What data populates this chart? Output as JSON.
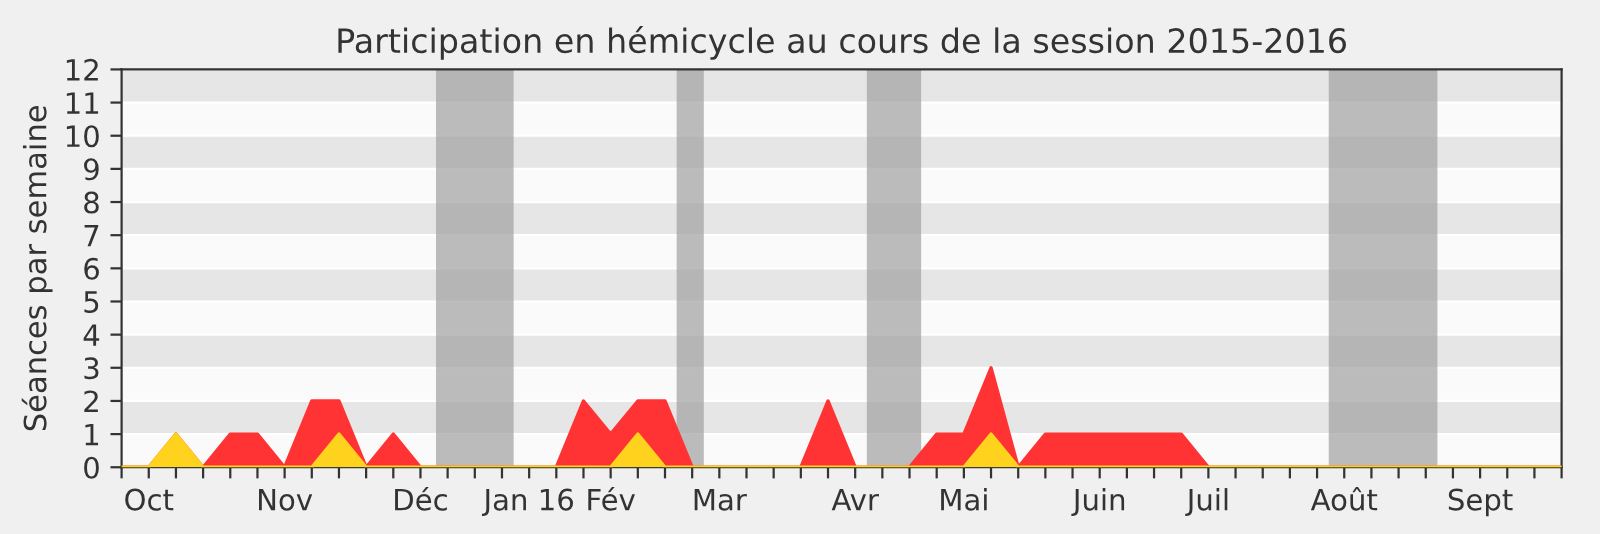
{
  "chart_data": {
    "type": "area",
    "title": "Participation en hémicycle au cours de la session 2015-2016",
    "ylabel": "Séances par semaine",
    "x": [
      "2015-10-01",
      "2015-10-08",
      "2015-10-15",
      "2015-10-22",
      "2015-10-29",
      "2015-11-05",
      "2015-11-12",
      "2015-11-19",
      "2015-11-26",
      "2015-12-03",
      "2015-12-10",
      "2015-12-17",
      "2015-12-24",
      "2015-12-31",
      "2016-01-07",
      "2016-01-14",
      "2016-01-21",
      "2016-01-28",
      "2016-02-04",
      "2016-02-11",
      "2016-02-18",
      "2016-02-25",
      "2016-03-03",
      "2016-03-10",
      "2016-03-17",
      "2016-03-24",
      "2016-03-31",
      "2016-04-07",
      "2016-04-14",
      "2016-04-21",
      "2016-04-28",
      "2016-05-05",
      "2016-05-12",
      "2016-05-19",
      "2016-05-26",
      "2016-06-02",
      "2016-06-09",
      "2016-06-16",
      "2016-06-23",
      "2016-06-30",
      "2016-07-07",
      "2016-07-14",
      "2016-07-21",
      "2016-07-28",
      "2016-08-04",
      "2016-08-11",
      "2016-08-18",
      "2016-08-25",
      "2016-09-01",
      "2016-09-08",
      "2016-09-15",
      "2016-09-22",
      "2016-09-29",
      "2016-10-06"
    ],
    "series": [
      {
        "color": "#ff3333",
        "values": [
          0,
          0,
          1,
          0,
          1,
          1,
          0,
          2,
          2,
          0,
          1,
          0,
          0,
          0,
          0,
          0,
          0,
          2,
          1,
          2,
          2,
          0,
          0,
          0,
          0,
          0,
          2,
          0,
          0,
          0,
          1,
          1,
          3,
          0,
          1,
          1,
          1,
          1,
          1,
          1,
          0,
          0,
          0,
          0,
          0,
          0,
          0,
          0,
          0,
          0,
          0,
          0,
          0,
          0
        ]
      },
      {
        "color": "#ffd21e",
        "values": [
          0,
          0,
          1,
          0,
          0,
          0,
          0,
          0,
          1,
          0,
          0,
          0,
          0,
          0,
          0,
          0,
          0,
          0,
          0,
          1,
          0,
          0,
          0,
          0,
          0,
          0,
          0,
          0,
          0,
          0,
          0,
          0,
          1,
          0,
          0,
          0,
          0,
          0,
          0,
          0,
          0,
          0,
          0,
          0,
          0,
          0,
          0,
          0,
          0,
          0,
          0,
          0,
          0,
          0
        ]
      }
    ],
    "bands": [
      {
        "axis": "x",
        "from": "2015-12-21",
        "to": "2016-01-10",
        "color": "#a0a0a0"
      },
      {
        "axis": "x",
        "from": "2016-02-21",
        "to": "2016-02-28",
        "color": "#a0a0a0"
      },
      {
        "axis": "x",
        "from": "2016-04-10",
        "to": "2016-04-24",
        "color": "#a0a0a0"
      },
      {
        "axis": "x",
        "from": "2016-08-07",
        "to": "2016-09-04",
        "color": "#a0a0a0"
      }
    ],
    "xlim": [
      "2015-10-01",
      "2016-10-06"
    ],
    "xticks": [
      {
        "value": "2015-10-01",
        "label": null
      },
      {
        "value": "2015-10-08",
        "label": "Oct"
      },
      {
        "value": "2015-10-15",
        "label": null
      },
      {
        "value": "2015-10-22",
        "label": null
      },
      {
        "value": "2015-10-29",
        "label": null
      },
      {
        "value": "2015-11-05",
        "label": null
      },
      {
        "value": "2015-11-12",
        "label": "Nov"
      },
      {
        "value": "2015-11-19",
        "label": null
      },
      {
        "value": "2015-11-26",
        "label": null
      },
      {
        "value": "2015-12-03",
        "label": null
      },
      {
        "value": "2015-12-10",
        "label": null
      },
      {
        "value": "2015-12-17",
        "label": "Déc"
      },
      {
        "value": "2015-12-24",
        "label": null
      },
      {
        "value": "2015-12-31",
        "label": null
      },
      {
        "value": "2016-01-07",
        "label": null
      },
      {
        "value": "2016-01-14",
        "label": "Jan 16"
      },
      {
        "value": "2016-01-21",
        "label": null
      },
      {
        "value": "2016-01-28",
        "label": null
      },
      {
        "value": "2016-02-04",
        "label": "Fév"
      },
      {
        "value": "2016-02-11",
        "label": null
      },
      {
        "value": "2016-02-18",
        "label": null
      },
      {
        "value": "2016-02-25",
        "label": null
      },
      {
        "value": "2016-03-03",
        "label": "Mar"
      },
      {
        "value": "2016-03-10",
        "label": null
      },
      {
        "value": "2016-03-17",
        "label": null
      },
      {
        "value": "2016-03-24",
        "label": null
      },
      {
        "value": "2016-03-31",
        "label": null
      },
      {
        "value": "2016-04-07",
        "label": "Avr"
      },
      {
        "value": "2016-04-14",
        "label": null
      },
      {
        "value": "2016-04-21",
        "label": null
      },
      {
        "value": "2016-04-28",
        "label": null
      },
      {
        "value": "2016-05-05",
        "label": "Mai"
      },
      {
        "value": "2016-05-12",
        "label": null
      },
      {
        "value": "2016-05-19",
        "label": null
      },
      {
        "value": "2016-05-26",
        "label": null
      },
      {
        "value": "2016-06-02",
        "label": null
      },
      {
        "value": "2016-06-09",
        "label": "Juin"
      },
      {
        "value": "2016-06-16",
        "label": null
      },
      {
        "value": "2016-06-23",
        "label": null
      },
      {
        "value": "2016-06-30",
        "label": null
      },
      {
        "value": "2016-07-07",
        "label": "Juil"
      },
      {
        "value": "2016-07-14",
        "label": null
      },
      {
        "value": "2016-07-21",
        "label": null
      },
      {
        "value": "2016-07-28",
        "label": null
      },
      {
        "value": "2016-08-04",
        "label": null
      },
      {
        "value": "2016-08-11",
        "label": "Août"
      },
      {
        "value": "2016-08-18",
        "label": null
      },
      {
        "value": "2016-08-25",
        "label": null
      },
      {
        "value": "2016-09-01",
        "label": null
      },
      {
        "value": "2016-09-08",
        "label": null
      },
      {
        "value": "2016-09-15",
        "label": "Sept"
      },
      {
        "value": "2016-09-22",
        "label": null
      },
      {
        "value": "2016-09-29",
        "label": null
      },
      {
        "value": "2016-10-06",
        "label": null
      }
    ],
    "ylim": [
      0,
      12
    ],
    "yticks": [
      0,
      1,
      2,
      3,
      4,
      5,
      6,
      7,
      8,
      9,
      10,
      11,
      12
    ],
    "grid": "y",
    "legend": false
  }
}
